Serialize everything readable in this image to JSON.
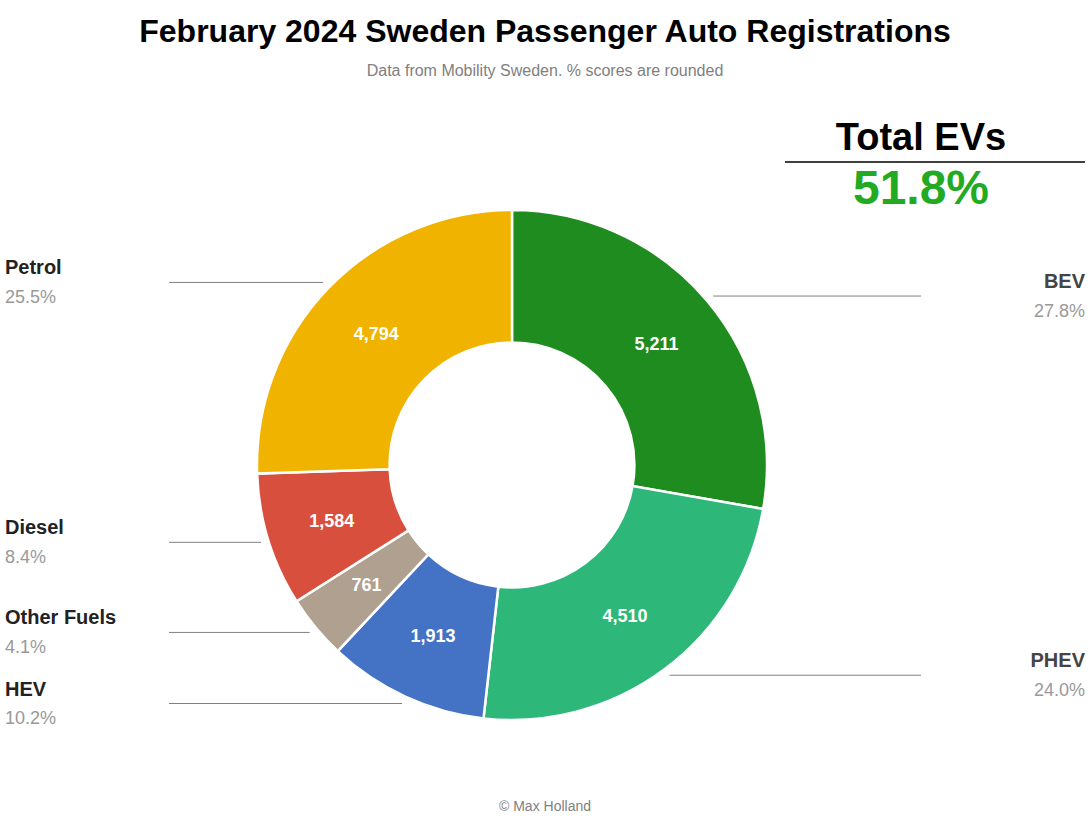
{
  "chart_data": {
    "type": "pie",
    "title": "February 2024 Sweden Passenger Auto Registrations",
    "subtitle": "Data from Mobility Sweden. % scores are rounded",
    "copyright": "© Max Holland",
    "categories": [
      "BEV",
      "PHEV",
      "HEV",
      "Other Fuels",
      "Diesel",
      "Petrol"
    ],
    "values": [
      5211,
      4510,
      1913,
      761,
      1584,
      4794
    ],
    "value_labels": [
      "5,211",
      "4,510",
      "1,913",
      "761",
      "1,584",
      "4,794"
    ],
    "data_labels": true,
    "shares": [
      27.8,
      24.0,
      10.2,
      4.1,
      8.4,
      25.5
    ],
    "share_labels": [
      "27.8%",
      "24.0%",
      "10.2%",
      "4.1%",
      "8.4%",
      "25.5%"
    ],
    "colors": [
      "#1e8c1e",
      "#2db87a",
      "#4472c4",
      "#b0a090",
      "#d94f3d",
      "#f0b400"
    ],
    "total": {
      "label": "Total EVs",
      "value": 51.8,
      "value_label": "51.8%",
      "color": "#22aa22"
    }
  }
}
